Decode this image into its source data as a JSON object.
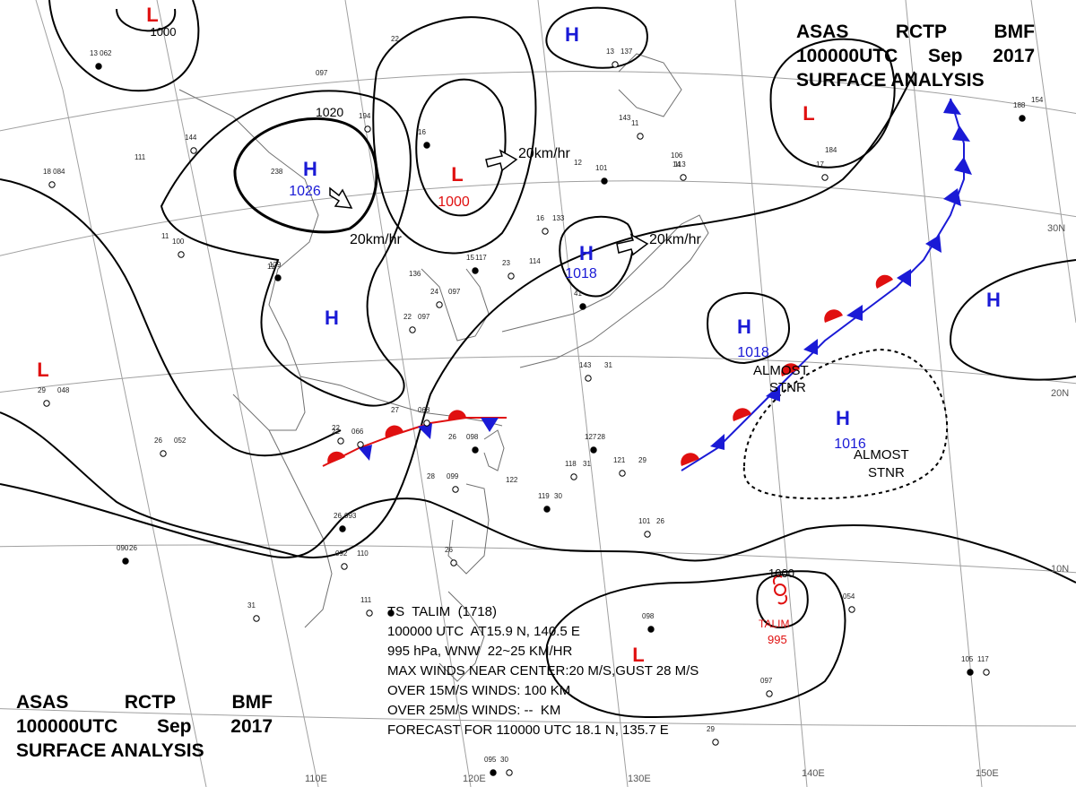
{
  "header_top": {
    "line1": [
      "ASAS",
      "RCTP",
      "BMF"
    ],
    "line2": [
      "100000UTC",
      "Sep",
      "2017"
    ],
    "line3": "SURFACE ANALYSIS"
  },
  "header_bottom": {
    "line1": [
      "ASAS",
      "RCTP",
      "BMF"
    ],
    "line2": [
      "100000UTC",
      "Sep",
      "2017"
    ],
    "line3": "SURFACE ANALYSIS"
  },
  "pressure_centers": [
    {
      "type": "L",
      "value": "1000"
    },
    {
      "type": "H",
      "value": "1026"
    },
    {
      "type": "L",
      "value": "1000"
    },
    {
      "type": "H",
      "value": ""
    },
    {
      "type": "H",
      "value": "1018"
    },
    {
      "type": "L",
      "value": ""
    },
    {
      "type": "H",
      "value": ""
    },
    {
      "type": "H",
      "value": "1018"
    },
    {
      "type": "H",
      "value": "1016"
    },
    {
      "type": "H",
      "value": ""
    },
    {
      "type": "L",
      "value": ""
    },
    {
      "type": "L",
      "value": ""
    }
  ],
  "isobar_labels": [
    "1020",
    "1000"
  ],
  "motion_labels": [
    "20km/hr",
    "20km/hr",
    "20km/hr"
  ],
  "stationary_notes": [
    [
      "ALMOST",
      "STNR"
    ],
    [
      "ALMOST",
      "STNR"
    ]
  ],
  "latitude_labels": [
    "30N",
    "20N",
    "10N"
  ],
  "longitude_labels": [
    "110E",
    "120E",
    "130E",
    "140E",
    "150E"
  ],
  "typhoon": {
    "name": "TALIM",
    "pressure": "995",
    "isobar": "1000",
    "bulletin": [
      "TS  TALIM  (1718)",
      "100000 UTC  AT15.9 N, 140.5 E",
      "995 hPa, WNW  22~25 KM/HR",
      "MAX WINDS NEAR CENTER:20 M/S,GUST 28 M/S",
      "OVER 15M/S WINDS: 100 KM",
      "OVER 25M/S WINDS: --  KM",
      "FORECAST FOR 110000 UTC 18.1 N, 135.7 E"
    ]
  },
  "station_numbers": [
    "13 062",
    "238",
    "144",
    "097",
    "194",
    "22",
    "16",
    "111",
    "18 084",
    "11",
    "100",
    "11",
    "129",
    "136",
    "24",
    "097",
    "22",
    "097",
    "15",
    "117",
    "23",
    "114",
    "16",
    "133",
    "41",
    "143",
    "13",
    "137",
    "11",
    "12",
    "101",
    "14",
    "113",
    "106",
    "17",
    "184",
    "188",
    "154",
    "26",
    "052",
    "29",
    "048",
    "26",
    "093",
    "22",
    "28",
    "099",
    "26",
    "098",
    "27",
    "068",
    "22",
    "066",
    "122",
    "119",
    "30",
    "118",
    "31",
    "121",
    "29",
    "127",
    "28",
    "143",
    "31",
    "101",
    "26",
    "090",
    "26",
    "092",
    "110",
    "26",
    "31",
    "105",
    "117",
    "054",
    "098",
    "097",
    "29",
    "095",
    "30",
    "111"
  ],
  "colors": {
    "high": "#1a1ad6",
    "low": "#e01010",
    "cold_front": "#1a1ad6",
    "warm_front": "#e01010",
    "isobar": "#000000",
    "grid": "#a0a0a0",
    "coast": "#707070"
  },
  "icons": [
    "cold-front-triangle",
    "warm-front-semicircle",
    "motion-arrow",
    "typhoon-symbol",
    "station-circle"
  ]
}
